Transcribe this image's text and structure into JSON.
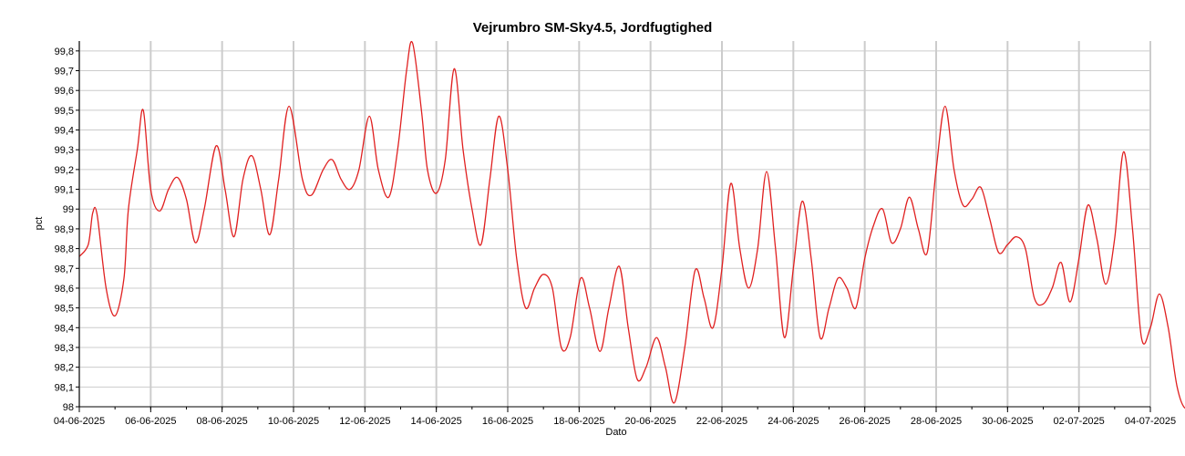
{
  "chart_data": {
    "type": "line",
    "title": "Vejrumbro SM-Sky4.5, Jordfugtighed",
    "xlabel": "Dato",
    "ylabel": "pct",
    "grid": true,
    "legend": "none",
    "xlim": [
      "04-06-2025",
      "04-07-2025"
    ],
    "ylim": [
      98.0,
      99.85
    ],
    "x_ticks": [
      "04-06-2025",
      "06-06-2025",
      "08-06-2025",
      "10-06-2025",
      "12-06-2025",
      "14-06-2025",
      "16-06-2025",
      "18-06-2025",
      "20-06-2025",
      "22-06-2025",
      "24-06-2025",
      "26-06-2025",
      "28-06-2025",
      "30-06-2025",
      "02-07-2025",
      "04-07-2025"
    ],
    "y_ticks": [
      "98",
      "98,1",
      "98,2",
      "98,3",
      "98,4",
      "98,5",
      "98,6",
      "98,7",
      "98,8",
      "98,9",
      "99",
      "99,1",
      "99,2",
      "99,3",
      "99,4",
      "99,5",
      "99,6",
      "99,7",
      "99,8"
    ],
    "series": [
      {
        "color": "#e02020",
        "points": [
          [
            "2025-06-04 00:00",
            98.76
          ],
          [
            "2025-06-04 06:00",
            98.82
          ],
          [
            "2025-06-04 09:00",
            98.98
          ],
          [
            "2025-06-04 12:00",
            98.97
          ],
          [
            "2025-06-04 18:00",
            98.6
          ],
          [
            "2025-06-05 00:00",
            98.46
          ],
          [
            "2025-06-05 06:00",
            98.65
          ],
          [
            "2025-06-05 09:00",
            99.0
          ],
          [
            "2025-06-05 15:00",
            99.3
          ],
          [
            "2025-06-05 19:00",
            99.5
          ],
          [
            "2025-06-06 00:00",
            99.1
          ],
          [
            "2025-06-06 06:00",
            98.99
          ],
          [
            "2025-06-06 12:00",
            99.1
          ],
          [
            "2025-06-06 18:00",
            99.16
          ],
          [
            "2025-06-07 00:00",
            99.05
          ],
          [
            "2025-06-07 06:00",
            98.83
          ],
          [
            "2025-06-07 12:00",
            99.0
          ],
          [
            "2025-06-07 20:00",
            99.32
          ],
          [
            "2025-06-08 02:00",
            99.1
          ],
          [
            "2025-06-08 08:00",
            98.86
          ],
          [
            "2025-06-08 14:00",
            99.15
          ],
          [
            "2025-06-08 20:00",
            99.27
          ],
          [
            "2025-06-09 02:00",
            99.1
          ],
          [
            "2025-06-09 08:00",
            98.87
          ],
          [
            "2025-06-09 14:00",
            99.15
          ],
          [
            "2025-06-09 21:00",
            99.52
          ],
          [
            "2025-06-10 06:00",
            99.15
          ],
          [
            "2025-06-10 12:00",
            99.07
          ],
          [
            "2025-06-10 20:00",
            99.2
          ],
          [
            "2025-06-11 02:00",
            99.25
          ],
          [
            "2025-06-11 08:00",
            99.15
          ],
          [
            "2025-06-11 14:00",
            99.1
          ],
          [
            "2025-06-11 20:00",
            99.2
          ],
          [
            "2025-06-12 03:00",
            99.47
          ],
          [
            "2025-06-12 09:00",
            99.2
          ],
          [
            "2025-06-12 16:00",
            99.06
          ],
          [
            "2025-06-12 22:00",
            99.3
          ],
          [
            "2025-06-13 04:00",
            99.7
          ],
          [
            "2025-06-13 08:00",
            99.84
          ],
          [
            "2025-06-13 14:00",
            99.5
          ],
          [
            "2025-06-13 18:00",
            99.2
          ],
          [
            "2025-06-14 00:00",
            99.08
          ],
          [
            "2025-06-14 06:00",
            99.25
          ],
          [
            "2025-06-14 12:00",
            99.71
          ],
          [
            "2025-06-14 18:00",
            99.3
          ],
          [
            "2025-06-15 00:00",
            99.0
          ],
          [
            "2025-06-15 06:00",
            98.82
          ],
          [
            "2025-06-15 12:00",
            99.15
          ],
          [
            "2025-06-15 18:00",
            99.47
          ],
          [
            "2025-06-16 00:00",
            99.2
          ],
          [
            "2025-06-16 06:00",
            98.75
          ],
          [
            "2025-06-16 12:00",
            98.5
          ],
          [
            "2025-06-16 18:00",
            98.6
          ],
          [
            "2025-06-17 00:00",
            98.67
          ],
          [
            "2025-06-17 06:00",
            98.6
          ],
          [
            "2025-06-17 12:00",
            98.3
          ],
          [
            "2025-06-17 18:00",
            98.35
          ],
          [
            "2025-06-18 01:00",
            98.65
          ],
          [
            "2025-06-18 07:00",
            98.5
          ],
          [
            "2025-06-18 14:00",
            98.28
          ],
          [
            "2025-06-18 20:00",
            98.5
          ],
          [
            "2025-06-19 03:00",
            98.71
          ],
          [
            "2025-06-19 09:00",
            98.4
          ],
          [
            "2025-06-19 15:00",
            98.14
          ],
          [
            "2025-06-19 21:00",
            98.2
          ],
          [
            "2025-06-20 04:00",
            98.35
          ],
          [
            "2025-06-20 10:00",
            98.2
          ],
          [
            "2025-06-20 16:00",
            98.02
          ],
          [
            "2025-06-20 23:00",
            98.3
          ],
          [
            "2025-06-21 06:00",
            98.69
          ],
          [
            "2025-06-21 12:00",
            98.55
          ],
          [
            "2025-06-21 18:00",
            98.4
          ],
          [
            "2025-06-22 00:00",
            98.7
          ],
          [
            "2025-06-22 06:00",
            99.13
          ],
          [
            "2025-06-22 12:00",
            98.8
          ],
          [
            "2025-06-22 18:00",
            98.6
          ],
          [
            "2025-06-23 00:00",
            98.8
          ],
          [
            "2025-06-23 06:00",
            99.19
          ],
          [
            "2025-06-23 12:00",
            98.8
          ],
          [
            "2025-06-23 18:00",
            98.35
          ],
          [
            "2025-06-24 00:00",
            98.7
          ],
          [
            "2025-06-24 06:00",
            99.04
          ],
          [
            "2025-06-24 12:00",
            98.75
          ],
          [
            "2025-06-24 18:00",
            98.35
          ],
          [
            "2025-06-25 00:00",
            98.5
          ],
          [
            "2025-06-25 06:00",
            98.65
          ],
          [
            "2025-06-25 12:00",
            98.6
          ],
          [
            "2025-06-25 18:00",
            98.5
          ],
          [
            "2025-06-26 00:00",
            98.75
          ],
          [
            "2025-06-26 06:00",
            98.92
          ],
          [
            "2025-06-26 12:00",
            99.0
          ],
          [
            "2025-06-26 18:00",
            98.83
          ],
          [
            "2025-06-27 00:00",
            98.9
          ],
          [
            "2025-06-27 06:00",
            99.06
          ],
          [
            "2025-06-27 12:00",
            98.9
          ],
          [
            "2025-06-27 18:00",
            98.78
          ],
          [
            "2025-06-28 00:00",
            99.2
          ],
          [
            "2025-06-28 06:00",
            99.52
          ],
          [
            "2025-06-28 12:00",
            99.2
          ],
          [
            "2025-06-28 18:00",
            99.02
          ],
          [
            "2025-06-29 00:00",
            99.05
          ],
          [
            "2025-06-29 06:00",
            99.11
          ],
          [
            "2025-06-29 12:00",
            98.95
          ],
          [
            "2025-06-29 18:00",
            98.78
          ],
          [
            "2025-06-30 00:00",
            98.82
          ],
          [
            "2025-06-30 06:00",
            98.86
          ],
          [
            "2025-06-30 12:00",
            98.8
          ],
          [
            "2025-06-30 18:00",
            98.55
          ],
          [
            "2025-07-01 00:00",
            98.52
          ],
          [
            "2025-07-01 06:00",
            98.6
          ],
          [
            "2025-07-01 12:00",
            98.73
          ],
          [
            "2025-07-01 18:00",
            98.53
          ],
          [
            "2025-07-02 00:00",
            98.75
          ],
          [
            "2025-07-02 06:00",
            99.02
          ],
          [
            "2025-07-02 12:00",
            98.85
          ],
          [
            "2025-07-02 18:00",
            98.62
          ],
          [
            "2025-07-03 00:00",
            98.85
          ],
          [
            "2025-07-03 06:00",
            99.29
          ],
          [
            "2025-07-03 12:00",
            98.9
          ],
          [
            "2025-07-03 18:00",
            98.35
          ],
          [
            "2025-07-04 00:00",
            98.4
          ],
          [
            "2025-07-04 06:00",
            98.57
          ],
          [
            "2025-07-04 12:00",
            98.4
          ],
          [
            "2025-07-04 18:00",
            98.1
          ],
          [
            "2025-07-05 00:00",
            97.99
          ],
          [
            "2025-07-05 06:00",
            98.07
          ]
        ]
      }
    ]
  }
}
